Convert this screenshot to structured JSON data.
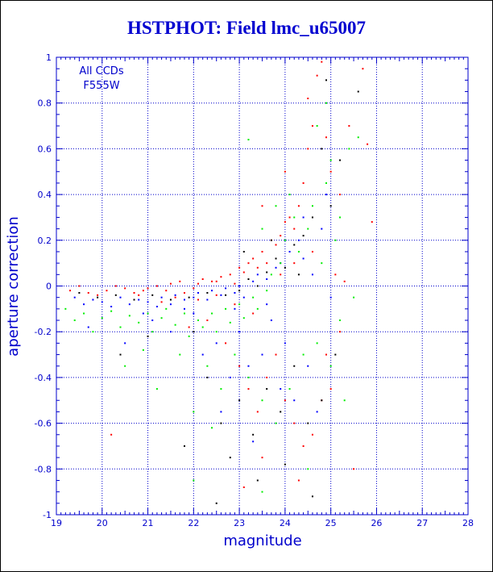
{
  "chart_data": {
    "type": "scatter",
    "title": "HSTPHOT: Field lmc_u65007",
    "xlabel": "magnitude",
    "ylabel": "aperture correction",
    "xlim": [
      19,
      28
    ],
    "ylim": [
      -1,
      1
    ],
    "xticks": [
      "19",
      "20",
      "21",
      "22",
      "23",
      "24",
      "25",
      "26",
      "27",
      "28"
    ],
    "yticks": [
      "-1",
      "-0.8",
      "-0.6",
      "-0.4",
      "-0.2",
      "0",
      "0.2",
      "0.4",
      "0.6",
      "0.8",
      "1"
    ],
    "grid": true,
    "annotation": [
      "All CCDs",
      "F555W"
    ],
    "colors": {
      "axis": "#0000cc",
      "title": "#0000d0"
    },
    "series": [
      {
        "color": "#ff0000",
        "points": [
          [
            19.3,
            -0.02
          ],
          [
            19.5,
            0.0
          ],
          [
            19.7,
            -0.03
          ],
          [
            19.9,
            -0.04
          ],
          [
            20.1,
            -0.02
          ],
          [
            20.3,
            0.0
          ],
          [
            20.5,
            -0.01
          ],
          [
            20.7,
            -0.03
          ],
          [
            20.9,
            -0.02
          ],
          [
            21.0,
            -0.01
          ],
          [
            21.2,
            0.0
          ],
          [
            21.4,
            -0.02
          ],
          [
            21.5,
            0.01
          ],
          [
            21.7,
            0.02
          ],
          [
            21.8,
            -0.03
          ],
          [
            22.0,
            -0.01
          ],
          [
            22.1,
            0.01
          ],
          [
            22.2,
            0.03
          ],
          [
            22.4,
            0.02
          ],
          [
            22.5,
            -0.04
          ],
          [
            22.6,
            0.04
          ],
          [
            22.8,
            0.05
          ],
          [
            22.9,
            0.01
          ],
          [
            23.0,
            0.08
          ],
          [
            23.1,
            0.06
          ],
          [
            23.2,
            0.1
          ],
          [
            23.3,
            0.12
          ],
          [
            23.4,
            0.08
          ],
          [
            23.5,
            0.15
          ],
          [
            23.6,
            0.1
          ],
          [
            23.7,
            0.2
          ],
          [
            23.8,
            0.18
          ],
          [
            23.9,
            0.22
          ],
          [
            24.0,
            0.28
          ],
          [
            24.1,
            0.3
          ],
          [
            24.2,
            0.25
          ],
          [
            24.3,
            0.35
          ],
          [
            24.4,
            0.45
          ],
          [
            24.5,
            0.6
          ],
          [
            24.6,
            0.7
          ],
          [
            24.7,
            0.92
          ],
          [
            24.8,
            0.98
          ],
          [
            24.9,
            0.65
          ],
          [
            25.0,
            0.5
          ],
          [
            25.2,
            0.4
          ],
          [
            25.4,
            0.7
          ],
          [
            25.7,
            0.95
          ],
          [
            25.8,
            0.62
          ],
          [
            25.9,
            0.28
          ],
          [
            22.3,
            -0.15
          ],
          [
            22.7,
            -0.25
          ],
          [
            23.0,
            -0.35
          ],
          [
            23.2,
            -0.45
          ],
          [
            23.4,
            -0.55
          ],
          [
            23.6,
            -0.4
          ],
          [
            23.8,
            -0.3
          ],
          [
            24.0,
            -0.5
          ],
          [
            24.2,
            -0.6
          ],
          [
            24.4,
            -0.7
          ],
          [
            24.6,
            -0.65
          ],
          [
            24.8,
            -0.5
          ],
          [
            25.0,
            -0.45
          ],
          [
            24.3,
            -0.85
          ],
          [
            23.5,
            -0.75
          ],
          [
            20.2,
            -0.65
          ],
          [
            24.6,
            0.15
          ],
          [
            25.1,
            0.05
          ],
          [
            25.3,
            0.02
          ],
          [
            23.9,
            0.05
          ],
          [
            24.2,
            0.1
          ],
          [
            22.9,
            -0.08
          ],
          [
            23.3,
            -0.12
          ],
          [
            21.9,
            -0.18
          ],
          [
            22.5,
            0.02
          ],
          [
            22.1,
            -0.06
          ],
          [
            21.6,
            -0.05
          ],
          [
            20.8,
            -0.04
          ],
          [
            21.3,
            -0.07
          ],
          [
            25.5,
            -0.8
          ],
          [
            25.2,
            -0.2
          ],
          [
            24.9,
            -0.3
          ],
          [
            23.1,
            -0.88
          ],
          [
            24.5,
            0.82
          ],
          [
            24.0,
            0.5
          ],
          [
            23.5,
            0.35
          ]
        ]
      },
      {
        "color": "#0000ff",
        "points": [
          [
            19.4,
            -0.05
          ],
          [
            19.6,
            -0.08
          ],
          [
            19.8,
            -0.06
          ],
          [
            20.0,
            -0.07
          ],
          [
            20.2,
            -0.09
          ],
          [
            20.4,
            -0.05
          ],
          [
            20.6,
            -0.08
          ],
          [
            20.8,
            -0.06
          ],
          [
            21.0,
            -0.07
          ],
          [
            21.2,
            -0.09
          ],
          [
            21.3,
            -0.05
          ],
          [
            21.5,
            -0.08
          ],
          [
            21.6,
            -0.04
          ],
          [
            21.8,
            -0.06
          ],
          [
            22.0,
            -0.05
          ],
          [
            22.1,
            -0.03
          ],
          [
            22.3,
            -0.06
          ],
          [
            22.4,
            -0.02
          ],
          [
            22.6,
            -0.04
          ],
          [
            22.7,
            -0.01
          ],
          [
            22.9,
            -0.03
          ],
          [
            23.0,
            0.0
          ],
          [
            23.1,
            -0.05
          ],
          [
            23.3,
            0.02
          ],
          [
            23.4,
            0.05
          ],
          [
            23.6,
            0.03
          ],
          [
            23.8,
            0.08
          ],
          [
            23.9,
            0.1
          ],
          [
            24.1,
            0.15
          ],
          [
            24.3,
            0.2
          ],
          [
            24.4,
            0.12
          ],
          [
            24.6,
            0.05
          ],
          [
            24.8,
            0.25
          ],
          [
            22.2,
            -0.3
          ],
          [
            22.5,
            -0.25
          ],
          [
            22.8,
            -0.4
          ],
          [
            23.0,
            -0.2
          ],
          [
            23.2,
            -0.35
          ],
          [
            23.5,
            -0.3
          ],
          [
            23.7,
            -0.15
          ],
          [
            24.0,
            -0.25
          ],
          [
            24.2,
            -0.5
          ],
          [
            24.5,
            -0.35
          ],
          [
            24.7,
            -0.55
          ],
          [
            21.5,
            -0.2
          ],
          [
            21.1,
            -0.15
          ],
          [
            20.9,
            -0.12
          ],
          [
            20.5,
            -0.25
          ],
          [
            19.7,
            -0.18
          ],
          [
            24.4,
            0.3
          ],
          [
            23.9,
            -0.45
          ],
          [
            22.6,
            -0.55
          ],
          [
            23.3,
            -0.68
          ],
          [
            25.0,
            -0.05
          ],
          [
            24.9,
            0.4
          ],
          [
            22.0,
            -0.12
          ],
          [
            21.8,
            -0.1
          ],
          [
            22.9,
            -0.1
          ],
          [
            23.6,
            -0.08
          ]
        ]
      },
      {
        "color": "#00ee00",
        "points": [
          [
            19.2,
            -0.1
          ],
          [
            19.4,
            -0.15
          ],
          [
            19.6,
            -0.12
          ],
          [
            19.8,
            -0.2
          ],
          [
            20.0,
            -0.14
          ],
          [
            20.2,
            -0.11
          ],
          [
            20.4,
            -0.18
          ],
          [
            20.6,
            -0.13
          ],
          [
            20.8,
            -0.16
          ],
          [
            21.0,
            -0.12
          ],
          [
            21.1,
            -0.2
          ],
          [
            21.3,
            -0.14
          ],
          [
            21.4,
            -0.1
          ],
          [
            21.6,
            -0.17
          ],
          [
            21.8,
            -0.12
          ],
          [
            21.9,
            -0.22
          ],
          [
            22.1,
            -0.15
          ],
          [
            22.2,
            -0.18
          ],
          [
            22.4,
            -0.12
          ],
          [
            22.5,
            -0.2
          ],
          [
            22.7,
            -0.1
          ],
          [
            22.8,
            -0.16
          ],
          [
            23.0,
            -0.08
          ],
          [
            23.1,
            -0.14
          ],
          [
            23.3,
            -0.05
          ],
          [
            23.4,
            -0.1
          ],
          [
            23.6,
            -0.02
          ],
          [
            23.7,
            0.05
          ],
          [
            23.9,
            0.1
          ],
          [
            24.0,
            0.2
          ],
          [
            24.2,
            0.3
          ],
          [
            24.3,
            0.15
          ],
          [
            24.5,
            0.25
          ],
          [
            24.6,
            0.35
          ],
          [
            24.8,
            0.1
          ],
          [
            24.9,
            0.45
          ],
          [
            25.0,
            0.55
          ],
          [
            25.2,
            0.3
          ],
          [
            25.4,
            0.6
          ],
          [
            25.6,
            0.65
          ],
          [
            25.1,
            0.2
          ],
          [
            23.5,
            0.25
          ],
          [
            23.8,
            0.35
          ],
          [
            24.1,
            0.4
          ],
          [
            23.2,
            0.64
          ],
          [
            22.3,
            -0.35
          ],
          [
            22.6,
            -0.45
          ],
          [
            22.9,
            -0.3
          ],
          [
            23.2,
            -0.4
          ],
          [
            23.5,
            -0.5
          ],
          [
            23.8,
            -0.6
          ],
          [
            24.1,
            -0.45
          ],
          [
            24.4,
            -0.3
          ],
          [
            24.7,
            -0.25
          ],
          [
            25.0,
            -0.35
          ],
          [
            25.3,
            -0.5
          ],
          [
            21.7,
            -0.3
          ],
          [
            20.5,
            -0.35
          ],
          [
            20.9,
            -0.28
          ],
          [
            21.2,
            -0.45
          ],
          [
            22.0,
            -0.55
          ],
          [
            22.4,
            -0.62
          ],
          [
            22.0,
            -0.85
          ],
          [
            23.5,
            -0.9
          ],
          [
            24.5,
            -0.8
          ],
          [
            25.2,
            -0.15
          ],
          [
            25.5,
            -0.05
          ],
          [
            24.7,
            0.7
          ],
          [
            24.9,
            0.8
          ]
        ]
      },
      {
        "color": "#000000",
        "points": [
          [
            19.5,
            -0.03
          ],
          [
            19.9,
            -0.05
          ],
          [
            20.3,
            -0.04
          ],
          [
            20.7,
            -0.06
          ],
          [
            21.1,
            -0.04
          ],
          [
            21.5,
            -0.06
          ],
          [
            21.9,
            -0.05
          ],
          [
            22.3,
            -0.03
          ],
          [
            22.7,
            -0.04
          ],
          [
            23.0,
            -0.02
          ],
          [
            23.2,
            0.03
          ],
          [
            23.4,
            0.0
          ],
          [
            23.6,
            0.06
          ],
          [
            23.8,
            0.12
          ],
          [
            24.0,
            0.08
          ],
          [
            24.2,
            0.18
          ],
          [
            24.4,
            0.22
          ],
          [
            24.6,
            0.3
          ],
          [
            24.8,
            0.6
          ],
          [
            24.9,
            0.9
          ],
          [
            25.0,
            0.35
          ],
          [
            25.2,
            0.55
          ],
          [
            25.6,
            0.85
          ],
          [
            22.0,
            -0.2
          ],
          [
            22.3,
            -0.4
          ],
          [
            22.6,
            -0.6
          ],
          [
            22.8,
            -0.75
          ],
          [
            23.0,
            -0.5
          ],
          [
            23.3,
            -0.65
          ],
          [
            23.6,
            -0.45
          ],
          [
            23.9,
            -0.55
          ],
          [
            24.2,
            -0.35
          ],
          [
            24.5,
            -0.6
          ],
          [
            24.8,
            -0.5
          ],
          [
            25.1,
            -0.3
          ],
          [
            21.8,
            -0.7
          ],
          [
            22.5,
            -0.95
          ],
          [
            23.4,
            -0.85
          ],
          [
            24.6,
            -0.92
          ],
          [
            20.4,
            -0.3
          ],
          [
            21.0,
            -0.22
          ],
          [
            24.0,
            -0.78
          ],
          [
            23.1,
            0.15
          ],
          [
            23.7,
            0.2
          ],
          [
            24.3,
            0.05
          ]
        ]
      }
    ]
  }
}
